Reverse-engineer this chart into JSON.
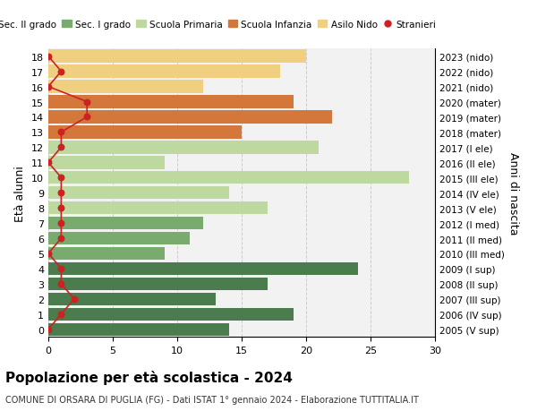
{
  "ages": [
    18,
    17,
    16,
    15,
    14,
    13,
    12,
    11,
    10,
    9,
    8,
    7,
    6,
    5,
    4,
    3,
    2,
    1,
    0
  ],
  "right_labels": [
    "2005 (V sup)",
    "2006 (IV sup)",
    "2007 (III sup)",
    "2008 (II sup)",
    "2009 (I sup)",
    "2010 (III med)",
    "2011 (II med)",
    "2012 (I med)",
    "2013 (V ele)",
    "2014 (IV ele)",
    "2015 (III ele)",
    "2016 (II ele)",
    "2017 (I ele)",
    "2018 (mater)",
    "2019 (mater)",
    "2020 (mater)",
    "2021 (nido)",
    "2022 (nido)",
    "2023 (nido)"
  ],
  "bar_values": [
    14,
    19,
    13,
    17,
    24,
    9,
    11,
    12,
    17,
    14,
    28,
    9,
    21,
    15,
    22,
    19,
    12,
    18,
    20
  ],
  "bar_colors": [
    "#4a7c4e",
    "#4a7c4e",
    "#4a7c4e",
    "#4a7c4e",
    "#4a7c4e",
    "#7aab6e",
    "#7aab6e",
    "#7aab6e",
    "#bdd9a0",
    "#bdd9a0",
    "#bdd9a0",
    "#bdd9a0",
    "#bdd9a0",
    "#d4773a",
    "#d4773a",
    "#d4773a",
    "#f0d080",
    "#f0d080",
    "#f0d080"
  ],
  "stranieri_values": [
    0,
    1,
    2,
    1,
    1,
    0,
    1,
    1,
    1,
    1,
    1,
    0,
    1,
    1,
    3,
    3,
    0,
    1,
    0
  ],
  "legend_labels": [
    "Sec. II grado",
    "Sec. I grado",
    "Scuola Primaria",
    "Scuola Infanzia",
    "Asilo Nido",
    "Stranieri"
  ],
  "legend_colors": [
    "#4a7c4e",
    "#7aab6e",
    "#bdd9a0",
    "#d4773a",
    "#f0d080",
    "#cc2222"
  ],
  "title": "Popolazione per età scolastica - 2024",
  "subtitle": "COMUNE DI ORSARA DI PUGLIA (FG) - Dati ISTAT 1° gennaio 2024 - Elaborazione TUTTITALIA.IT",
  "ylabel": "Età alunni",
  "right_ylabel": "Anni di nascita",
  "xlim": [
    0,
    30
  ],
  "xticks": [
    0,
    5,
    10,
    15,
    20,
    25,
    30
  ],
  "grid_color": "#cccccc",
  "bg_color": "#ffffff",
  "bar_bg_color": "#f2f2f2"
}
